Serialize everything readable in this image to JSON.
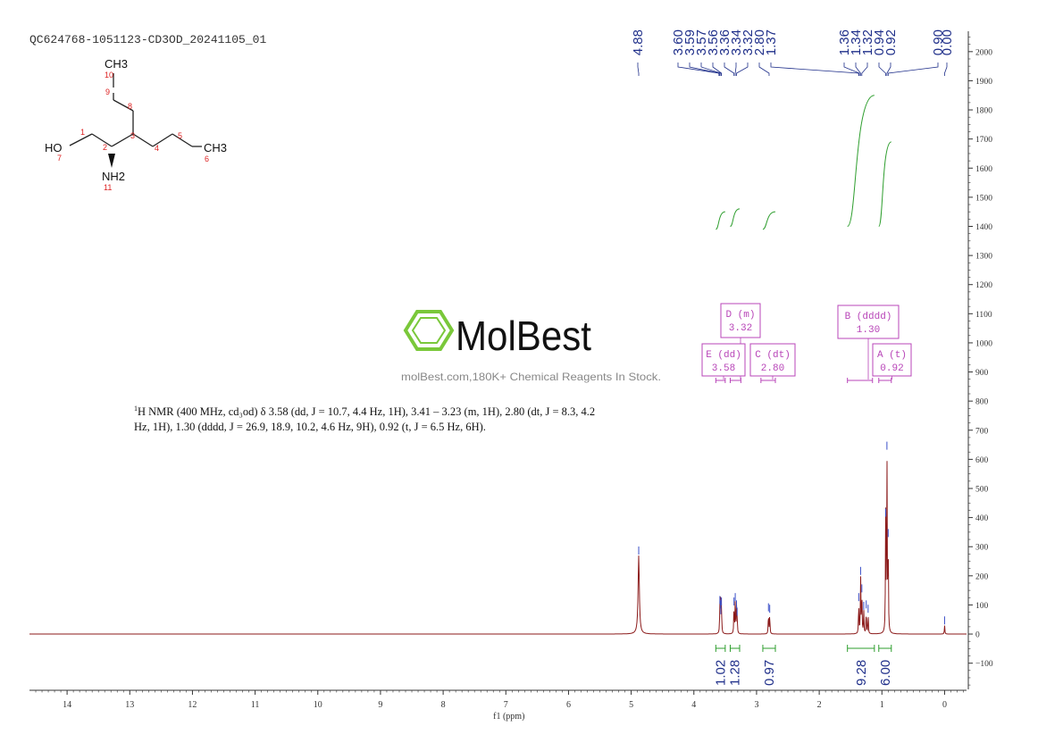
{
  "sample_id": "QC624768-1051123-CD3OD_20241105_01",
  "structure": {
    "atoms": {
      "C10_group": "CH3",
      "C10_num": "10",
      "C9_num": "9",
      "C8_num": "8",
      "C3_num": "3",
      "C4_num": "4",
      "C5_num": "5",
      "C6_group": "CH3",
      "C6_num": "6",
      "C1_num": "1",
      "C2_num": "2",
      "O7_group": "HO",
      "O7_num": "7",
      "N11_group": "NH2",
      "N11_num": "11"
    }
  },
  "watermark": {
    "brand": "MolBest",
    "tagline": "molBest.com,180K+ Chemical Reagents In Stock."
  },
  "nmr_text": {
    "line1_sup": "1",
    "line1": "H NMR (400 MHz, cd₃od) δ 3.58 (dd, J = 10.7, 4.4 Hz, 1H), 3.41 – 3.23 (m, 1H), 2.80 (dt, J = 8.3, 4.2",
    "line2": "Hz, 1H), 1.30 (dddd, J = 26.9, 18.9, 10.2, 4.6 Hz, 9H), 0.92 (t, J = 6.5 Hz, 6H)."
  },
  "chart_data": {
    "type": "line",
    "xlabel": "f1 (ppm)",
    "xlim": [
      14.6,
      -0.35
    ],
    "x_ticks": [
      14,
      13,
      12,
      11,
      10,
      9,
      8,
      7,
      6,
      5,
      4,
      3,
      2,
      1,
      0
    ],
    "ylim": [
      -190,
      2070
    ],
    "y_ticks": [
      -100,
      0,
      100,
      200,
      300,
      400,
      500,
      600,
      700,
      800,
      900,
      1000,
      1100,
      1200,
      1300,
      1400,
      1500,
      1600,
      1700,
      1800,
      1900,
      2000
    ],
    "peaks": [
      {
        "ppm": 4.88,
        "height": 270
      },
      {
        "ppm": 3.585,
        "height": 100
      },
      {
        "ppm": 3.575,
        "height": 85
      },
      {
        "ppm": 3.57,
        "height": 65
      },
      {
        "ppm": 3.56,
        "height": 95
      },
      {
        "ppm": 3.36,
        "height": 95
      },
      {
        "ppm": 3.34,
        "height": 110
      },
      {
        "ppm": 3.32,
        "height": 85
      },
      {
        "ppm": 3.31,
        "height": 60
      },
      {
        "ppm": 2.81,
        "height": 75
      },
      {
        "ppm": 2.79,
        "height": 70
      },
      {
        "ppm": 1.37,
        "height": 110
      },
      {
        "ppm": 1.34,
        "height": 200
      },
      {
        "ppm": 1.32,
        "height": 140
      },
      {
        "ppm": 1.29,
        "height": 80
      },
      {
        "ppm": 1.25,
        "height": 85
      },
      {
        "ppm": 1.22,
        "height": 70
      },
      {
        "ppm": 0.94,
        "height": 400
      },
      {
        "ppm": 0.92,
        "height": 630
      },
      {
        "ppm": 0.9,
        "height": 330
      },
      {
        "ppm": 0.0,
        "height": 30
      }
    ],
    "peak_labels": [
      "4.88",
      "3.60",
      "3.59",
      "3.57",
      "3.56",
      "3.36",
      "3.34",
      "3.32",
      "2.80",
      "1.37",
      "1.36",
      "1.34",
      "1.32",
      "0.94",
      "0.92",
      "0.90",
      "0.00"
    ],
    "peak_label_positions": [
      4.88,
      3.6,
      3.59,
      3.57,
      3.56,
      3.36,
      3.34,
      3.32,
      2.8,
      1.37,
      1.36,
      1.34,
      1.32,
      0.94,
      0.92,
      0.9,
      0.0
    ],
    "integrals": [
      {
        "label": "1.02",
        "from": 3.65,
        "to": 3.5,
        "curve": [
          1390,
          1450
        ]
      },
      {
        "label": "1.28",
        "from": 3.42,
        "to": 3.27,
        "curve": [
          1400,
          1460
        ]
      },
      {
        "label": "0.97",
        "from": 2.9,
        "to": 2.7,
        "curve": [
          1390,
          1450
        ]
      },
      {
        "label": "9.28",
        "from": 1.55,
        "to": 1.12,
        "curve": [
          1400,
          1850
        ]
      },
      {
        "label": "6.00",
        "from": 1.05,
        "to": 0.85,
        "curve": [
          1400,
          1690
        ]
      }
    ],
    "multiplets": [
      {
        "letter": "D",
        "type": "m",
        "value": "3.32",
        "ppm": 3.32
      },
      {
        "letter": "E",
        "type": "dd",
        "value": "3.58",
        "ppm": 3.58
      },
      {
        "letter": "C",
        "type": "dt",
        "value": "2.80",
        "ppm": 2.8
      },
      {
        "letter": "B",
        "type": "dddd",
        "value": "1.30",
        "ppm": 1.3
      },
      {
        "letter": "A",
        "type": "t",
        "value": "0.92",
        "ppm": 0.92
      }
    ],
    "colors": {
      "spectrum": "#8b1a1a",
      "peak_label": "#1f2f8a",
      "integral": "#2e9e2e",
      "multiplet": "#b845b8",
      "axis": "#333333",
      "brand_green": "#7ac83a"
    }
  }
}
